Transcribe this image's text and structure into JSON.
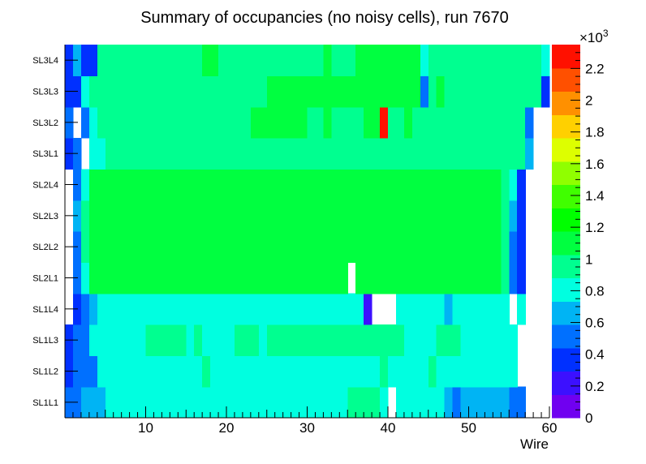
{
  "chart_data": {
    "type": "heatmap",
    "title": "Summary of occupancies (no noisy cells), run 7670",
    "xlabel": "Wire",
    "ylabel": "",
    "xlim": [
      0,
      60
    ],
    "x_ticks": [
      10,
      20,
      30,
      40,
      50,
      60
    ],
    "y_categories": [
      "SL1L1",
      "SL1L2",
      "SL1L3",
      "SL1L4",
      "SL2L1",
      "SL2L2",
      "SL2L3",
      "SL2L4",
      "SL3L1",
      "SL3L2",
      "SL3L3",
      "SL3L4"
    ],
    "colorbar": {
      "min": 0,
      "max": 2350,
      "exponent_label": "×10",
      "exponent_power": "3",
      "tick_labels": [
        "0",
        "0.2",
        "0.4",
        "0.6",
        "0.8",
        "1",
        "1.2",
        "1.4",
        "1.6",
        "1.8",
        "2",
        "2.2"
      ],
      "tick_values": [
        0,
        200,
        400,
        600,
        800,
        1000,
        1200,
        1400,
        1600,
        1800,
        2000,
        2200
      ],
      "palette": [
        "#7000f0",
        "#3c10ff",
        "#0030ff",
        "#0070ff",
        "#00b4f4",
        "#00ffe0",
        "#00ff90",
        "#00ff40",
        "#00ff00",
        "#40ff00",
        "#90ff00",
        "#ddff00",
        "#ffd000",
        "#ff9000",
        "#ff5000",
        "#ff1000"
      ]
    },
    "rows": [
      {
        "name": "SL1L1",
        "values": [
          500,
          550,
          600,
          600,
          600,
          750,
          750,
          750,
          750,
          750,
          750,
          750,
          750,
          750,
          800,
          800,
          800,
          800,
          800,
          800,
          800,
          800,
          800,
          750,
          800,
          800,
          750,
          800,
          800,
          800,
          750,
          800,
          800,
          850,
          800,
          900,
          900,
          900,
          900,
          850,
          null,
          750,
          750,
          750,
          750,
          750,
          750,
          600,
          550,
          600,
          650,
          650,
          650,
          650,
          650,
          500,
          500,
          null,
          null,
          null
        ]
      },
      {
        "name": "SL1L2",
        "values": [
          400,
          450,
          550,
          550,
          850,
          850,
          850,
          850,
          850,
          850,
          850,
          850,
          850,
          850,
          850,
          850,
          850,
          900,
          850,
          850,
          850,
          850,
          850,
          850,
          850,
          850,
          850,
          850,
          850,
          850,
          850,
          850,
          850,
          850,
          850,
          850,
          850,
          850,
          850,
          900,
          850,
          850,
          850,
          850,
          850,
          900,
          850,
          850,
          850,
          850,
          850,
          850,
          850,
          850,
          850,
          750,
          null,
          null,
          null,
          null
        ]
      },
      {
        "name": "SL1L3",
        "values": [
          400,
          450,
          550,
          750,
          850,
          850,
          850,
          850,
          850,
          850,
          900,
          900,
          900,
          900,
          900,
          850,
          900,
          850,
          850,
          850,
          850,
          900,
          900,
          900,
          850,
          900,
          900,
          900,
          900,
          900,
          900,
          900,
          900,
          900,
          900,
          900,
          900,
          900,
          900,
          900,
          900,
          900,
          850,
          850,
          850,
          850,
          900,
          900,
          900,
          850,
          850,
          850,
          850,
          850,
          850,
          750,
          null,
          null,
          null,
          null
        ]
      },
      {
        "name": "SL1L4",
        "values": [
          null,
          400,
          450,
          600,
          800,
          800,
          800,
          800,
          800,
          800,
          750,
          800,
          800,
          750,
          800,
          800,
          800,
          800,
          800,
          850,
          850,
          850,
          850,
          850,
          850,
          800,
          850,
          850,
          800,
          850,
          850,
          850,
          850,
          850,
          850,
          850,
          850,
          200,
          null,
          null,
          null,
          850,
          850,
          800,
          800,
          850,
          850,
          700,
          850,
          850,
          750,
          800,
          800,
          800,
          800,
          null,
          750,
          null,
          null,
          null
        ]
      },
      {
        "name": "SL2L1",
        "values": [
          null,
          550,
          850,
          1050,
          1150,
          1150,
          1150,
          1150,
          1150,
          1150,
          1150,
          1150,
          1150,
          1150,
          1150,
          1150,
          1150,
          1150,
          1100,
          1150,
          1150,
          1150,
          1150,
          1150,
          1150,
          1150,
          1150,
          1150,
          1150,
          1150,
          1150,
          1150,
          1150,
          1150,
          1150,
          null,
          1150,
          1150,
          1150,
          1150,
          1150,
          1150,
          1150,
          1150,
          1150,
          1150,
          1150,
          1150,
          1150,
          1150,
          1150,
          1150,
          1150,
          1150,
          950,
          500,
          300,
          null,
          null,
          null
        ]
      },
      {
        "name": "SL2L2",
        "values": [
          null,
          450,
          900,
          1150,
          1050,
          1100,
          1150,
          1150,
          1150,
          1150,
          1150,
          1150,
          1150,
          1150,
          1150,
          1150,
          1150,
          1150,
          1150,
          1150,
          1150,
          1150,
          1150,
          1150,
          1150,
          1150,
          1150,
          1150,
          1150,
          1150,
          1150,
          1150,
          1150,
          1150,
          1150,
          1150,
          1150,
          1150,
          1150,
          1150,
          1150,
          1150,
          1150,
          1150,
          1150,
          1150,
          1150,
          1150,
          1150,
          1150,
          1150,
          1150,
          1150,
          1150,
          950,
          550,
          350,
          null,
          null,
          null
        ]
      },
      {
        "name": "SL2L3",
        "values": [
          null,
          700,
          900,
          1100,
          1150,
          1150,
          1150,
          1150,
          1150,
          1150,
          1150,
          1150,
          1150,
          1150,
          1150,
          1150,
          1150,
          1150,
          1100,
          1150,
          1150,
          1150,
          1150,
          1150,
          1150,
          1150,
          1150,
          1150,
          1150,
          1150,
          1150,
          1150,
          1150,
          1150,
          1150,
          1150,
          1150,
          1150,
          1150,
          1150,
          1150,
          1150,
          1150,
          1150,
          1150,
          1150,
          1150,
          1150,
          1150,
          1150,
          1150,
          1150,
          1150,
          1150,
          950,
          600,
          400,
          null,
          null,
          null
        ]
      },
      {
        "name": "SL2L4",
        "values": [
          null,
          500,
          850,
          1050,
          1100,
          1100,
          1100,
          1100,
          1150,
          1150,
          1150,
          1150,
          1150,
          1150,
          1150,
          1150,
          1150,
          1150,
          1150,
          1150,
          1150,
          1150,
          1150,
          1150,
          1150,
          1150,
          1150,
          1150,
          1150,
          1150,
          1150,
          1150,
          1150,
          1150,
          1150,
          1150,
          1150,
          1150,
          1150,
          1150,
          1150,
          1150,
          1150,
          1150,
          1150,
          1150,
          1150,
          1150,
          1150,
          1150,
          1150,
          1150,
          1150,
          1150,
          950,
          850,
          300,
          null,
          null,
          null
        ]
      },
      {
        "name": "SL3L1",
        "values": [
          400,
          550,
          null,
          800,
          850,
          950,
          950,
          950,
          950,
          950,
          950,
          950,
          950,
          1000,
          950,
          950,
          950,
          950,
          1000,
          950,
          950,
          950,
          950,
          950,
          950,
          950,
          950,
          950,
          950,
          950,
          950,
          950,
          950,
          950,
          950,
          950,
          950,
          950,
          950,
          950,
          950,
          950,
          950,
          950,
          1000,
          950,
          1000,
          950,
          950,
          950,
          950,
          950,
          950,
          950,
          950,
          900,
          900,
          600,
          null,
          null
        ]
      },
      {
        "name": "SL3L2",
        "values": [
          450,
          null,
          550,
          850,
          950,
          1000,
          1000,
          1000,
          950,
          1000,
          1000,
          1000,
          1000,
          1000,
          1000,
          1000,
          1000,
          1000,
          1000,
          1000,
          1000,
          1000,
          1000,
          1050,
          1050,
          1050,
          1050,
          1050,
          1050,
          1050,
          1000,
          1000,
          1050,
          1000,
          1000,
          1000,
          1000,
          1050,
          1050,
          2350,
          1000,
          1000,
          1050,
          1000,
          1000,
          900,
          900,
          1000,
          1000,
          900,
          1000,
          1000,
          1000,
          1000,
          1000,
          950,
          950,
          500,
          null,
          null
        ]
      },
      {
        "name": "SL3L3",
        "values": [
          350,
          400,
          800,
          950,
          950,
          1000,
          1000,
          1000,
          950,
          1000,
          1000,
          1000,
          1000,
          950,
          1000,
          1000,
          1000,
          1000,
          1000,
          1000,
          1000,
          1000,
          1000,
          1000,
          1000,
          1050,
          1050,
          1050,
          1050,
          1050,
          1050,
          1050,
          1050,
          1050,
          1050,
          1050,
          1050,
          1050,
          1100,
          1050,
          1050,
          1050,
          1050,
          1050,
          500,
          1000,
          1100,
          1000,
          1000,
          1000,
          1000,
          1000,
          1000,
          1000,
          1000,
          1000,
          1000,
          1000,
          950,
          350
        ]
      },
      {
        "name": "SL3L4",
        "values": [
          350,
          700,
          300,
          350,
          950,
          950,
          950,
          950,
          1000,
          1000,
          1000,
          950,
          1000,
          1000,
          1000,
          950,
          950,
          1050,
          1100,
          1000,
          1000,
          1000,
          1000,
          1000,
          1000,
          1000,
          1000,
          1000,
          1000,
          1000,
          1000,
          1000,
          1050,
          1000,
          1000,
          1000,
          1050,
          1050,
          1050,
          1050,
          1050,
          1050,
          1050,
          1050,
          850,
          950,
          950,
          950,
          950,
          950,
          950,
          950,
          950,
          950,
          950,
          950,
          950,
          950,
          950,
          850
        ]
      }
    ]
  }
}
